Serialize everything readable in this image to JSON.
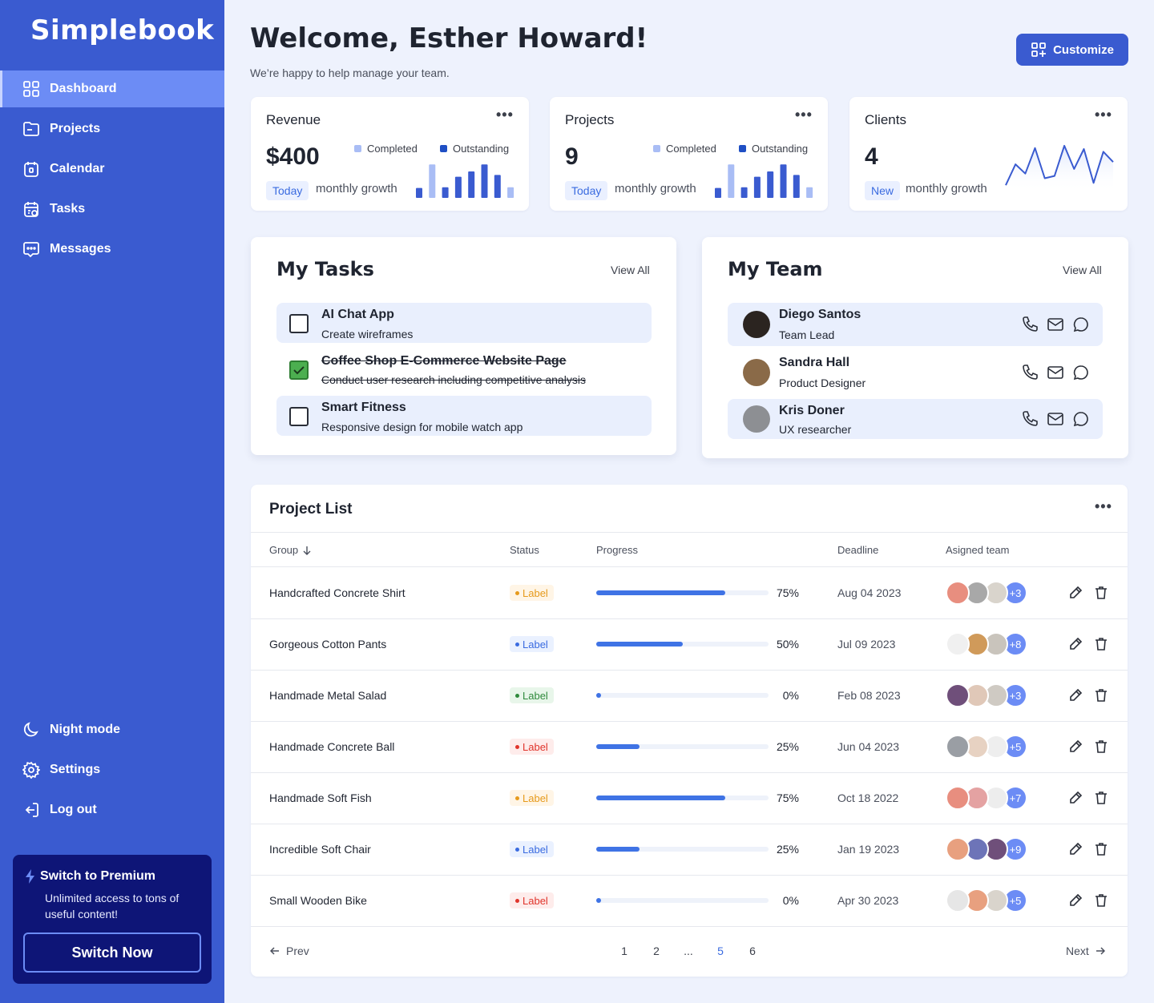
{
  "sidebar": {
    "logo": "Simplebook",
    "nav": [
      {
        "label": "Dashboard",
        "icon": "dashboard-icon",
        "active": true
      },
      {
        "label": "Projects",
        "icon": "folder-icon"
      },
      {
        "label": "Calendar",
        "icon": "calendar-icon"
      },
      {
        "label": "Tasks",
        "icon": "tasks-icon"
      },
      {
        "label": "Messages",
        "icon": "messages-icon"
      }
    ],
    "bottom": [
      {
        "label": "Night mode",
        "icon": "moon-icon"
      },
      {
        "label": "Settings",
        "icon": "gear-icon"
      },
      {
        "label": "Log out",
        "icon": "logout-icon"
      }
    ],
    "premium": {
      "title": "Switch to Premium",
      "subtitle": "Unlimited access to tons of useful content!",
      "button": "Switch Now"
    }
  },
  "header": {
    "title": "Welcome, Esther Howard!",
    "subtitle": "We’re happy to help manage your team.",
    "customize": "Customize"
  },
  "stats": [
    {
      "title": "Revenue",
      "value": "$400",
      "badge": "Today",
      "growth": "monthly growth",
      "legend_completed": "Completed",
      "legend_outstanding": "Outstanding"
    },
    {
      "title": "Projects",
      "value": "9",
      "badge": "Today",
      "growth": "monthly growth",
      "legend_completed": "Completed",
      "legend_outstanding": "Outstanding"
    },
    {
      "title": "Clients",
      "value": "4",
      "badge": "New",
      "growth": "monthly growth"
    }
  ],
  "revenue_bars": [
    {
      "value": 0.28,
      "type": "outstanding"
    },
    {
      "value": 0.95,
      "type": "completed"
    },
    {
      "value": 0.3,
      "type": "outstanding"
    },
    {
      "value": 0.6,
      "type": "outstanding"
    },
    {
      "value": 0.75,
      "type": "outstanding"
    },
    {
      "value": 0.95,
      "type": "outstanding"
    },
    {
      "value": 0.65,
      "type": "outstanding"
    },
    {
      "value": 0.3,
      "type": "completed"
    }
  ],
  "projects_bars": [
    {
      "value": 0.28,
      "type": "outstanding"
    },
    {
      "value": 0.95,
      "type": "completed"
    },
    {
      "value": 0.3,
      "type": "outstanding"
    },
    {
      "value": 0.6,
      "type": "outstanding"
    },
    {
      "value": 0.75,
      "type": "outstanding"
    },
    {
      "value": 0.95,
      "type": "outstanding"
    },
    {
      "value": 0.65,
      "type": "outstanding"
    },
    {
      "value": 0.3,
      "type": "completed"
    }
  ],
  "clients_line": [
    0.1,
    0.55,
    0.35,
    0.9,
    0.25,
    0.3,
    0.95,
    0.45,
    0.88,
    0.15,
    0.82,
    0.6
  ],
  "colors": {
    "completed": "#a9bdf5",
    "outstanding": "#3a5bd0",
    "line": "#3a5bd0"
  },
  "tasks": {
    "title": "My Tasks",
    "view_all": "View All",
    "items": [
      {
        "title": "AI Chat App",
        "subtitle": "Create wireframes",
        "done": false
      },
      {
        "title": "Coffee Shop E-Commerce Website Page",
        "subtitle": "Conduct user research including competitive analysis",
        "done": true
      },
      {
        "title": "Smart Fitness",
        "subtitle": "Responsive design for mobile watch app",
        "done": false
      }
    ]
  },
  "team": {
    "title": "My Team",
    "view_all": "View All",
    "members": [
      {
        "name": "Diego Santos",
        "role": "Team Lead",
        "avatar": "#2b2420"
      },
      {
        "name": "Sandra Hall",
        "role": "Product Designer",
        "avatar": "#8a6a48"
      },
      {
        "name": "Kris Doner",
        "role": "UX researcher",
        "avatar": "#8d8f93"
      }
    ]
  },
  "project_list": {
    "title": "Project List",
    "headers": {
      "group": "Group",
      "status": "Status",
      "progress": "Progress",
      "deadline": "Deadline",
      "team": "Asigned team"
    },
    "rows": [
      {
        "name": "Handcrafted Concrete Shirt",
        "status": "Label",
        "status_color": "orange",
        "progress": 0.75,
        "pct": "75%",
        "deadline": "Aug 04 2023",
        "more": "+3",
        "avatars": [
          "#e88e7f",
          "#a8a8a8",
          "#d9d4cc"
        ]
      },
      {
        "name": "Gorgeous Cotton Pants",
        "status": "Label",
        "status_color": "blue",
        "progress": 0.5,
        "pct": "50%",
        "deadline": "Jul 09 2023",
        "more": "+8",
        "avatars": [
          "#f0f0f0",
          "#d09a5a",
          "#c9c4bc"
        ]
      },
      {
        "name": "Handmade Metal Salad",
        "status": "Label",
        "status_color": "green",
        "progress": 0.0,
        "pct": "0%",
        "deadline": "Feb 08 2023",
        "more": "+3",
        "avatars": [
          "#6f4f7a",
          "#e0c8b8",
          "#cfcac3"
        ]
      },
      {
        "name": "Handmade Concrete Ball",
        "status": "Label",
        "status_color": "red",
        "progress": 0.25,
        "pct": "25%",
        "deadline": "Jun 04 2023",
        "more": "+5",
        "avatars": [
          "#9a9ea4",
          "#e7d2c2",
          "#eeeeee"
        ]
      },
      {
        "name": "Handmade Soft Fish",
        "status": "Label",
        "status_color": "orange",
        "progress": 0.75,
        "pct": "75%",
        "deadline": "Oct 18 2022",
        "more": "+7",
        "avatars": [
          "#e88e7f",
          "#e4a2a2",
          "#ededed"
        ]
      },
      {
        "name": "Incredible Soft Chair",
        "status": "Label",
        "status_color": "blue",
        "progress": 0.25,
        "pct": "25%",
        "deadline": "Jan 19 2023",
        "more": "+9",
        "avatars": [
          "#e8a07f",
          "#6d74b8",
          "#6f4f7a"
        ]
      },
      {
        "name": "Small Wooden Bike",
        "status": "Label",
        "status_color": "red",
        "progress": 0.0,
        "pct": "0%",
        "deadline": "Apr 30 2023",
        "more": "+5",
        "avatars": [
          "#e6e6e6",
          "#e8a07f",
          "#d9d4cc"
        ]
      }
    ],
    "pagination": {
      "prev": "Prev",
      "next": "Next",
      "pages": [
        "1",
        "2",
        "...",
        "5",
        "6"
      ],
      "current": "5"
    }
  },
  "status_colors": {
    "orange": {
      "bg": "#fff5e6",
      "fg": "#e69a1c"
    },
    "blue": {
      "bg": "#eaf1ff",
      "fg": "#3a6be0"
    },
    "green": {
      "bg": "#e8f6ea",
      "fg": "#2f8a3c"
    },
    "red": {
      "bg": "#feeceb",
      "fg": "#e0342b"
    }
  }
}
